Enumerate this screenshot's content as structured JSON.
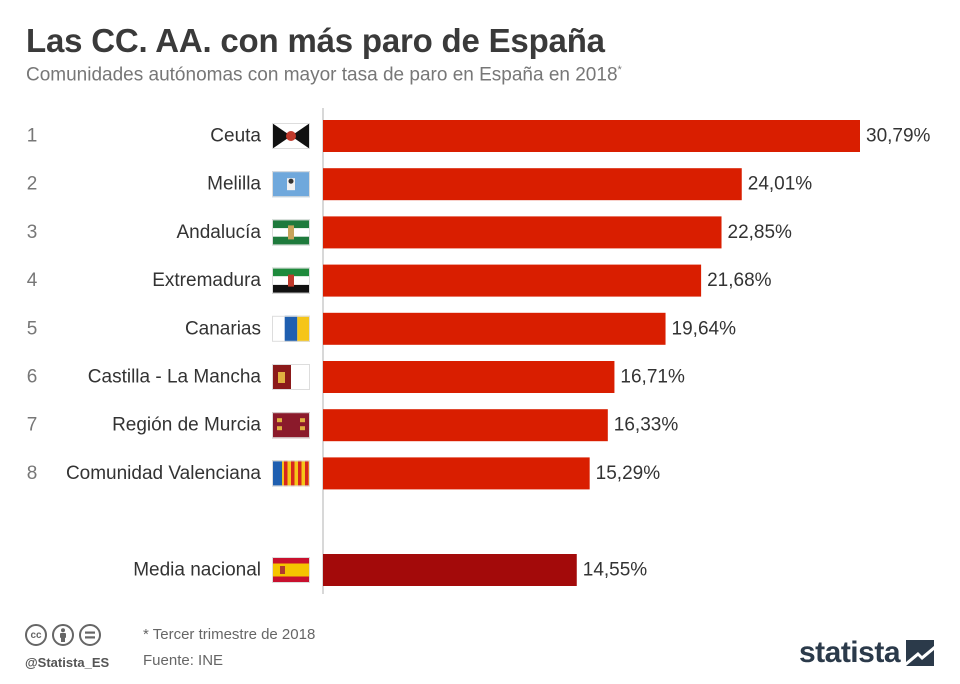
{
  "header": {
    "title": "Las CC. AA. con más paro de España",
    "subtitle": "Comunidades autónomas con mayor tasa de paro en España en 2018",
    "subtitle_mark": "*"
  },
  "chart_data": {
    "type": "bar",
    "orientation": "horizontal",
    "categories": [
      "Ceuta",
      "Melilla",
      "Andalucía",
      "Extremadura",
      "Canarias",
      "Castilla - La Mancha",
      "Región de Murcia",
      "Comunidad Valenciana"
    ],
    "ranks": [
      "1",
      "2",
      "3",
      "4",
      "5",
      "6",
      "7",
      "8"
    ],
    "values": [
      30.79,
      24.01,
      22.85,
      21.68,
      19.64,
      16.71,
      16.33,
      15.29
    ],
    "value_labels": [
      "30,79%",
      "24,01%",
      "22,85%",
      "21,68%",
      "19,64%",
      "16,71%",
      "16,33%",
      "15,29%"
    ],
    "reference": {
      "label": "Media nacional",
      "value": 14.55,
      "value_label": "14,55%"
    },
    "xlim": [
      0,
      30.79
    ],
    "colors": {
      "bars": "#d91e00",
      "reference_bar": "#a30a0a",
      "axis": "#cccccc"
    },
    "grid": false,
    "legend": "none"
  },
  "flags": [
    "ceuta-flag-icon",
    "melilla-flag-icon",
    "andalucia-flag-icon",
    "extremadura-flag-icon",
    "canarias-flag-icon",
    "castilla-la-mancha-flag-icon",
    "murcia-flag-icon",
    "valencia-flag-icon",
    "spain-flag-icon"
  ],
  "footer": {
    "note": "* Tercer trimestre de 2018",
    "source": "Fuente: INE",
    "handle": "@Statista_ES",
    "brand": "statista",
    "license_icons": [
      "cc-icon",
      "by-icon",
      "nd-icon"
    ]
  }
}
